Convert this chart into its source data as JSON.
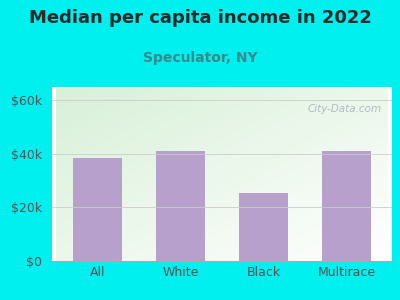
{
  "title": "Median per capita income in 2022",
  "subtitle": "Speculator, NY",
  "categories": [
    "All",
    "White",
    "Black",
    "Multirace"
  ],
  "values": [
    38500,
    41000,
    25500,
    41000
  ],
  "bar_color": "#b8a0cc",
  "background_outer": "#00efef",
  "title_color": "#2a2a2a",
  "subtitle_color": "#3a8a8a",
  "tick_label_color": "#555555",
  "ylim": [
    0,
    65000
  ],
  "yticks": [
    0,
    20000,
    40000,
    60000
  ],
  "ytick_labels": [
    "$0",
    "$20k",
    "$40k",
    "$60k"
  ],
  "title_fontsize": 13,
  "subtitle_fontsize": 10,
  "tick_fontsize": 9,
  "watermark_text": "City-Data.com",
  "watermark_color": "#aab5c0",
  "bar_width": 0.6
}
